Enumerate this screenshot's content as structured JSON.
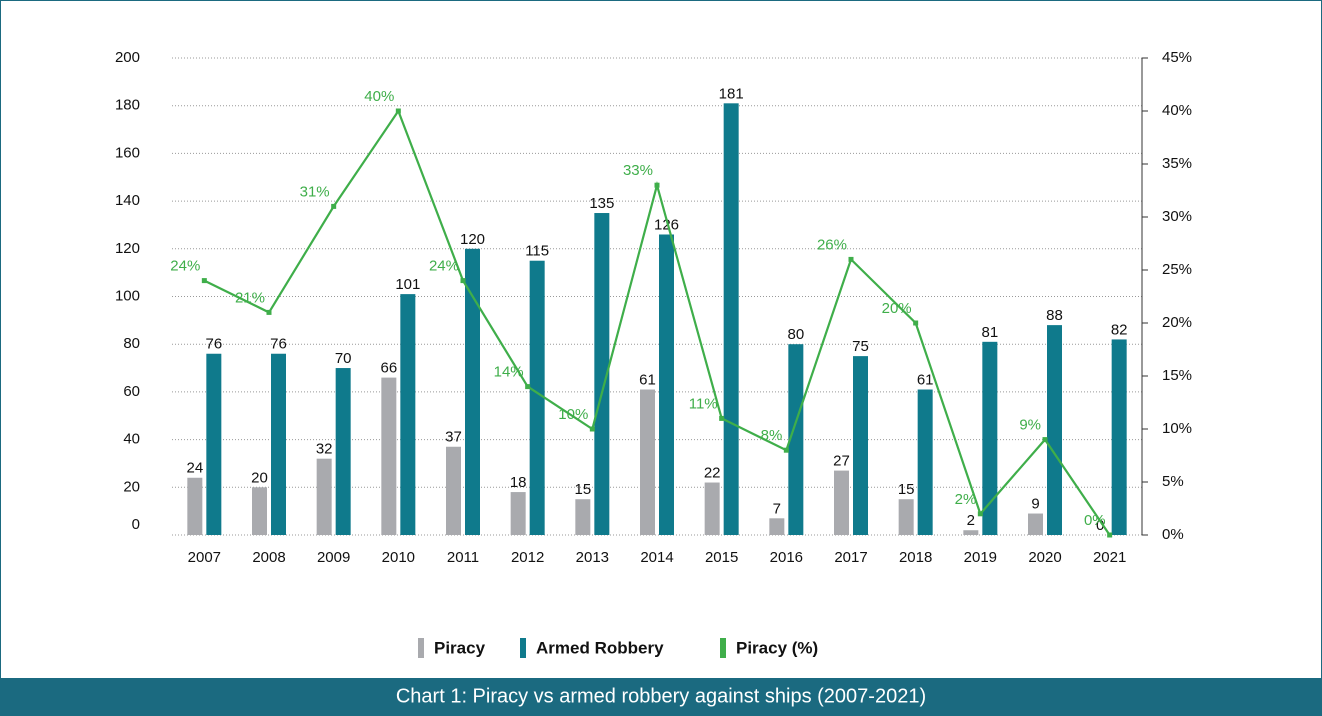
{
  "chart_data": {
    "type": "bar",
    "title": "Chart 1: Piracy vs armed robbery against ships (2007-2021)",
    "categories": [
      "2007",
      "2008",
      "2009",
      "2010",
      "2011",
      "2012",
      "2013",
      "2014",
      "2015",
      "2016",
      "2017",
      "2018",
      "2019",
      "2020",
      "2021"
    ],
    "series": [
      {
        "name": "Piracy",
        "color": "#a9aaae",
        "values": [
          24,
          20,
          32,
          66,
          37,
          18,
          15,
          61,
          22,
          7,
          27,
          15,
          2,
          9,
          0
        ]
      },
      {
        "name": "Armed Robbery",
        "color": "#0f7a8c",
        "values": [
          76,
          76,
          70,
          101,
          120,
          115,
          135,
          126,
          181,
          80,
          75,
          61,
          81,
          88,
          82
        ]
      },
      {
        "name": "Piracy (%)",
        "color": "#3fae4a",
        "axis": "y2",
        "type": "line",
        "values": [
          24,
          21,
          31,
          40,
          24,
          14,
          10,
          33,
          11,
          8,
          26,
          20,
          2,
          9,
          0
        ],
        "value_labels": [
          "24%",
          "21%",
          "31%",
          "40%",
          "24%",
          "14%",
          "10%",
          "33%",
          "11%",
          "8%",
          "26%",
          "20%",
          "2%",
          "9%",
          "0%"
        ]
      }
    ],
    "ylim": [
      0,
      200
    ],
    "yticks": [
      0,
      20,
      40,
      60,
      80,
      100,
      120,
      140,
      160,
      180,
      200
    ],
    "y2lim": [
      0,
      45
    ],
    "y2ticks": [
      {
        "value": 0,
        "label": "0%"
      },
      {
        "value": 5,
        "label": "5%"
      },
      {
        "value": 10,
        "label": "10%"
      },
      {
        "value": 15,
        "label": "15%"
      },
      {
        "value": 20,
        "label": "20%"
      },
      {
        "value": 25,
        "label": "25%"
      },
      {
        "value": 30,
        "label": "30%"
      },
      {
        "value": 35,
        "label": "35%"
      },
      {
        "value": 40,
        "label": "40%"
      },
      {
        "value": 45,
        "label": "45%"
      }
    ],
    "grid": true,
    "legend": "bottom"
  }
}
